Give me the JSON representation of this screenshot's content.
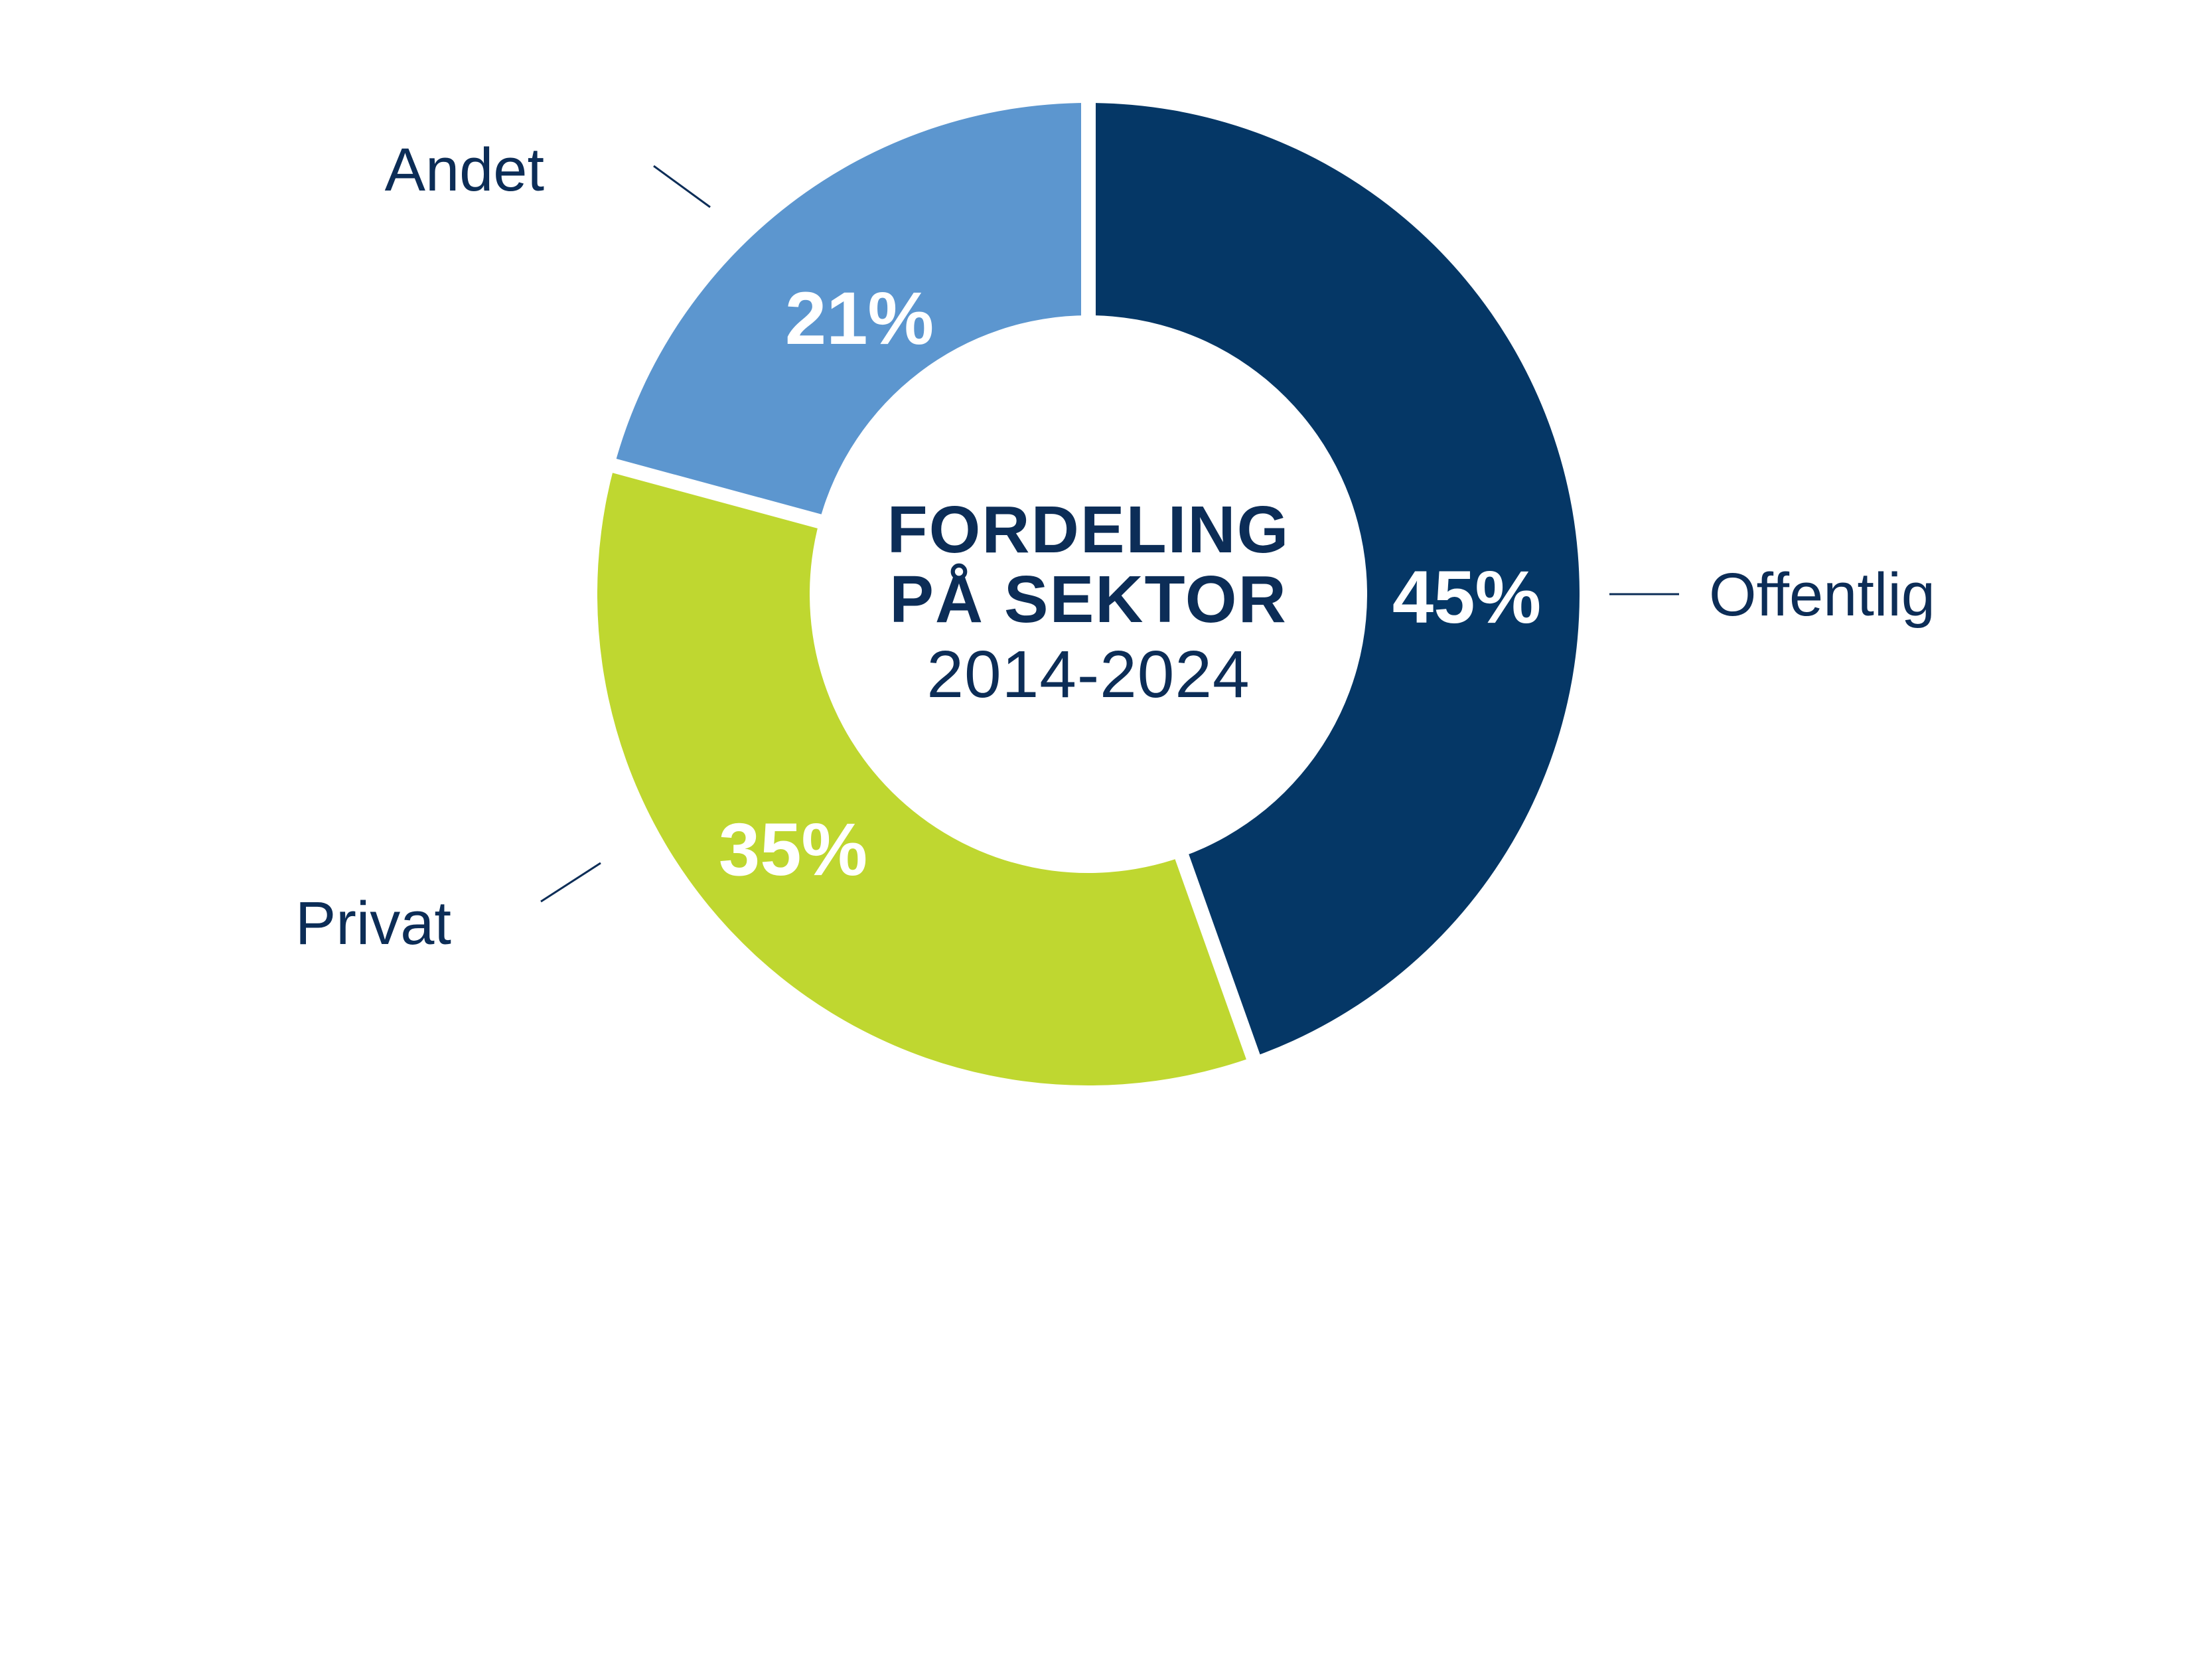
{
  "chart_data": {
    "type": "pie",
    "style": "donut",
    "title_lines": [
      "FORDELING",
      "PÅ SEKTOR"
    ],
    "subtitle": "2014-2024",
    "categories": [
      "Offentlig",
      "Privat",
      "Andet"
    ],
    "values": [
      45,
      35,
      21
    ],
    "value_labels": [
      "45%",
      "35%",
      "21%"
    ],
    "colors": [
      "#053766",
      "#bfd730",
      "#5c96cf"
    ],
    "label_color": "#0c2d57",
    "value_label_color": "#ffffff",
    "legend": "none",
    "label_placement": "outside with leader lines"
  }
}
